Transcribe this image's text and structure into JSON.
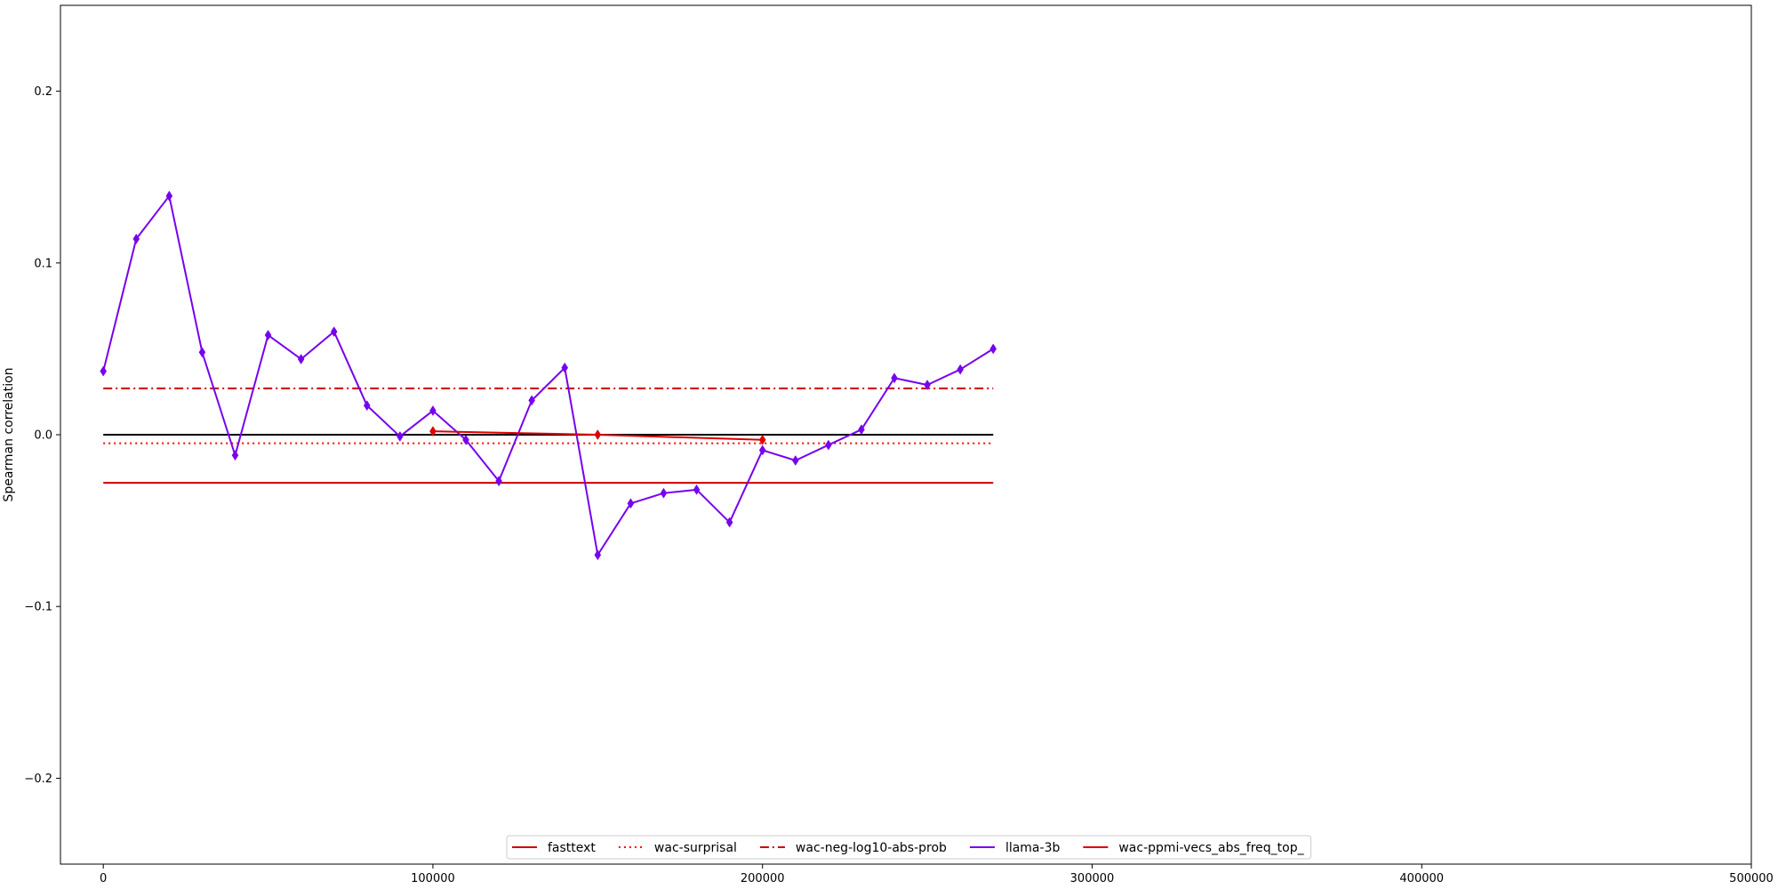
{
  "chart_data": {
    "type": "line",
    "title": "",
    "xlabel": "",
    "ylabel": "Spearman correlation",
    "xlim": [
      -13000,
      500000
    ],
    "ylim": [
      -0.25,
      0.25
    ],
    "xticks": [
      0,
      100000,
      200000,
      300000,
      400000,
      500000
    ],
    "yticks": [
      -0.2,
      -0.1,
      0.0,
      0.1,
      0.2
    ],
    "xtick_labels": [
      "0",
      "100000",
      "200000",
      "300000",
      "400000",
      "500000"
    ],
    "ytick_labels": [
      "−0.2",
      "−0.1",
      "0.0",
      "0.1",
      "0.2"
    ],
    "grid": false,
    "legend_position": "bottom-center",
    "zero_line": {
      "y": 0.0,
      "x_range": [
        0,
        270000
      ],
      "color": "#000000"
    },
    "series": [
      {
        "name": "fasttext",
        "kind": "hline",
        "y": -0.028,
        "x_range": [
          0,
          270000
        ],
        "color": "#cc0000",
        "style": "solid"
      },
      {
        "name": "wac-surprisal",
        "kind": "hline",
        "y": -0.005,
        "x_range": [
          0,
          270000
        ],
        "color": "#ff0000",
        "style": "dotted"
      },
      {
        "name": "wac-neg-log10-abs-prob",
        "kind": "hline",
        "y": 0.027,
        "x_range": [
          0,
          270000
        ],
        "color": "#cc0000",
        "style": "dashdot"
      },
      {
        "name": "llama-3b",
        "kind": "line",
        "color": "#7700ee",
        "marker": "diamond",
        "x": [
          0,
          10000,
          20000,
          30000,
          40000,
          50000,
          60000,
          70000,
          80000,
          90000,
          100000,
          110000,
          120000,
          130000,
          140000,
          150000,
          160000,
          170000,
          180000,
          190000,
          200000,
          210000,
          220000,
          230000,
          240000,
          250000,
          260000,
          270000
        ],
        "y": [
          0.037,
          0.114,
          0.139,
          0.048,
          -0.012,
          0.058,
          0.044,
          0.06,
          0.017,
          -0.001,
          0.014,
          -0.003,
          -0.027,
          0.02,
          0.039,
          -0.07,
          -0.04,
          -0.034,
          -0.032,
          -0.051,
          -0.009,
          -0.015,
          -0.006,
          0.003,
          0.033,
          0.029,
          0.038,
          0.05
        ]
      },
      {
        "name": "wac-ppmi-vecs_abs_freq_top_",
        "kind": "line",
        "color": "#dd0000",
        "marker": "diamond",
        "x": [
          100000,
          150000,
          200000
        ],
        "y": [
          0.002,
          0.0,
          -0.003
        ]
      }
    ]
  }
}
